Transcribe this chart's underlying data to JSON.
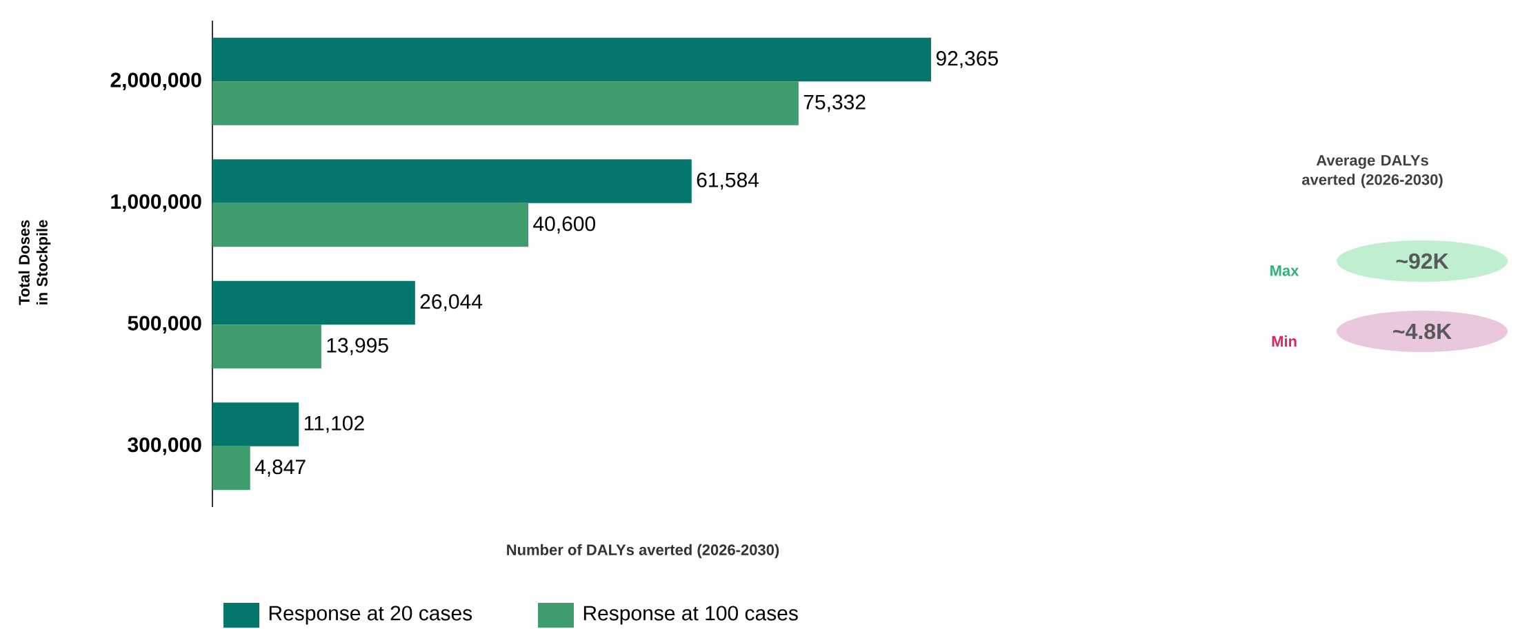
{
  "chart_data": {
    "type": "bar",
    "orientation": "horizontal",
    "xlabel": "Number of DALYs averted (2026-2030)",
    "ylabel": "Total Doses in Stockpile",
    "categories": [
      "2,000,000",
      "1,000,000",
      "500,000",
      "300,000"
    ],
    "series": [
      {
        "name": "Response at 20 cases",
        "color": "#04766c",
        "values": [
          92365,
          61584,
          26044,
          11102
        ],
        "value_labels": [
          "92,365",
          "61,584",
          "26,044",
          "11,102"
        ]
      },
      {
        "name": "Response at 100 cases",
        "color": "#3f9c6d",
        "values": [
          75332,
          40600,
          13995,
          4847
        ],
        "value_labels": [
          "75,332",
          "40,600",
          "13,995",
          "4,847"
        ]
      }
    ],
    "legend": "bottom",
    "grid": false,
    "annotations": [
      "Average DALYs averted (2026-2030)",
      "Max",
      "~92K",
      "Min",
      "~4.8K"
    ]
  }
}
